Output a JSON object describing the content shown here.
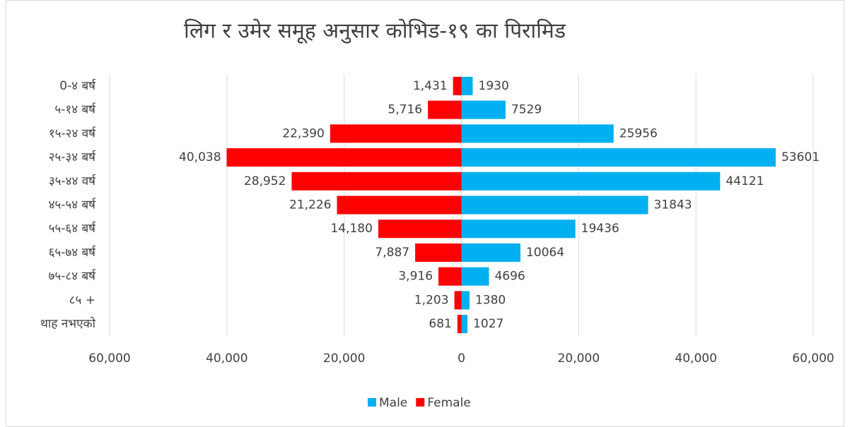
{
  "chart_data": {
    "type": "bar",
    "orientation": "horizontal",
    "title": "लिग र उमेर समूह अनुसार कोभिड-१९ का पिरामिड",
    "categories": [
      "0-४ बर्ष",
      "५-१४ बर्ष",
      "१५-२४ वर्ष",
      "२५-३४ बर्ष",
      "३५-४४ वर्ष",
      "४५-५४ बर्ष",
      "५५-६४ बर्ष",
      "६५-७४ बर्ष",
      "७५-८४ बर्ष",
      "८५ +",
      "थाह नभएको"
    ],
    "series": [
      {
        "name": "Male",
        "color": "#00b0f0",
        "values": [
          1930,
          7529,
          25956,
          53601,
          44121,
          31843,
          19436,
          10064,
          4696,
          1380,
          1027
        ]
      },
      {
        "name": "Female",
        "color": "#ff0000",
        "values": [
          -1431,
          -5716,
          -22390,
          -40038,
          -28952,
          -21226,
          -14180,
          -7887,
          -3916,
          -1203,
          -681
        ],
        "value_labels": [
          "1,431",
          "5,716",
          "22,390",
          "40,038",
          "28,952",
          "21,226",
          "14,180",
          "7,887",
          "3,916",
          "1,203",
          "681"
        ]
      }
    ],
    "xlim": [
      -60000,
      60000
    ],
    "xticks": [
      {
        "value": -60000,
        "label": "60,000"
      },
      {
        "value": -40000,
        "label": "40,000"
      },
      {
        "value": -20000,
        "label": "20,000"
      },
      0,
      {
        "value": 20000,
        "label": "20,000"
      },
      {
        "value": 40000,
        "label": "40,000"
      },
      {
        "value": 60000,
        "label": "60,000"
      }
    ],
    "grid": true,
    "legend": "bottom"
  }
}
